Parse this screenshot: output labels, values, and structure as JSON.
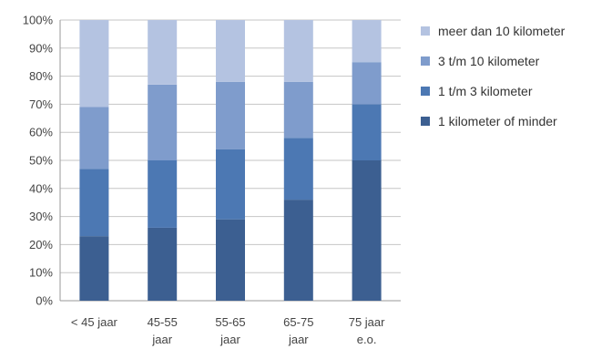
{
  "chart_data": {
    "type": "bar",
    "stacked": true,
    "categories": [
      "< 45 jaar",
      "45-55 jaar",
      "55-65 jaar",
      "65-75 jaar",
      "75 jaar e.o."
    ],
    "category_lines": [
      [
        "< 45 jaar"
      ],
      [
        "45-55",
        "jaar"
      ],
      [
        "55-65",
        "jaar"
      ],
      [
        "65-75",
        "jaar"
      ],
      [
        "75 jaar",
        "e.o."
      ]
    ],
    "y_ticks": [
      "0%",
      "10%",
      "20%",
      "30%",
      "40%",
      "50%",
      "60%",
      "70%",
      "80%",
      "90%",
      "100%"
    ],
    "ylim": [
      0,
      100
    ],
    "unit": "%",
    "grid": true,
    "legend_position": "right",
    "series": [
      {
        "name": "1 kilometer of minder",
        "color": "#3c5f91",
        "values": [
          23,
          26,
          29,
          36,
          50
        ]
      },
      {
        "name": "1 t/m 3 kilometer",
        "color": "#4c78b3",
        "values": [
          24,
          24,
          25,
          22,
          20
        ]
      },
      {
        "name": "3 t/m 10 kilometer",
        "color": "#7f9ccc",
        "values": [
          22,
          27,
          24,
          20,
          15
        ]
      },
      {
        "name": "meer dan 10 kilometer",
        "color": "#b4c3e1",
        "values": [
          31,
          23,
          22,
          22,
          15
        ]
      }
    ]
  }
}
